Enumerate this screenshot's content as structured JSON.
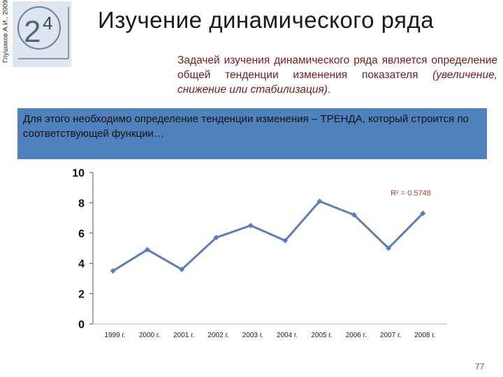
{
  "author": "Глушаков А.И., 2009",
  "title": "Изучение   динамического  ряда",
  "paragraph": {
    "text": "Задачей изучения динамического ряда является определение общей тенденции изменения показателя",
    "italic": "(увеличение, снижение или стабилизация)",
    "end": "."
  },
  "highlight": "Для этого необходимо определение тенденции изменения – ТРЕНДА, который строится по соответствующей функции…",
  "page_number": "77",
  "chart_data": {
    "type": "line",
    "annotation": "R² = 0.5748",
    "categories": [
      "1999 г.",
      "2000 г.",
      "2001 г.",
      "2002 г.",
      "2003 г.",
      "2004 г.",
      "2005 г.",
      "2006 г.",
      "2007 г.",
      "2008 г."
    ],
    "values": [
      3.5,
      4.9,
      3.6,
      5.7,
      6.5,
      5.5,
      8.1,
      7.2,
      5.0,
      7.3
    ],
    "color": "#5b7fb5",
    "ylim": [
      0,
      10
    ],
    "yticks": [
      0,
      2,
      4,
      6,
      8,
      10
    ],
    "grid": false
  }
}
